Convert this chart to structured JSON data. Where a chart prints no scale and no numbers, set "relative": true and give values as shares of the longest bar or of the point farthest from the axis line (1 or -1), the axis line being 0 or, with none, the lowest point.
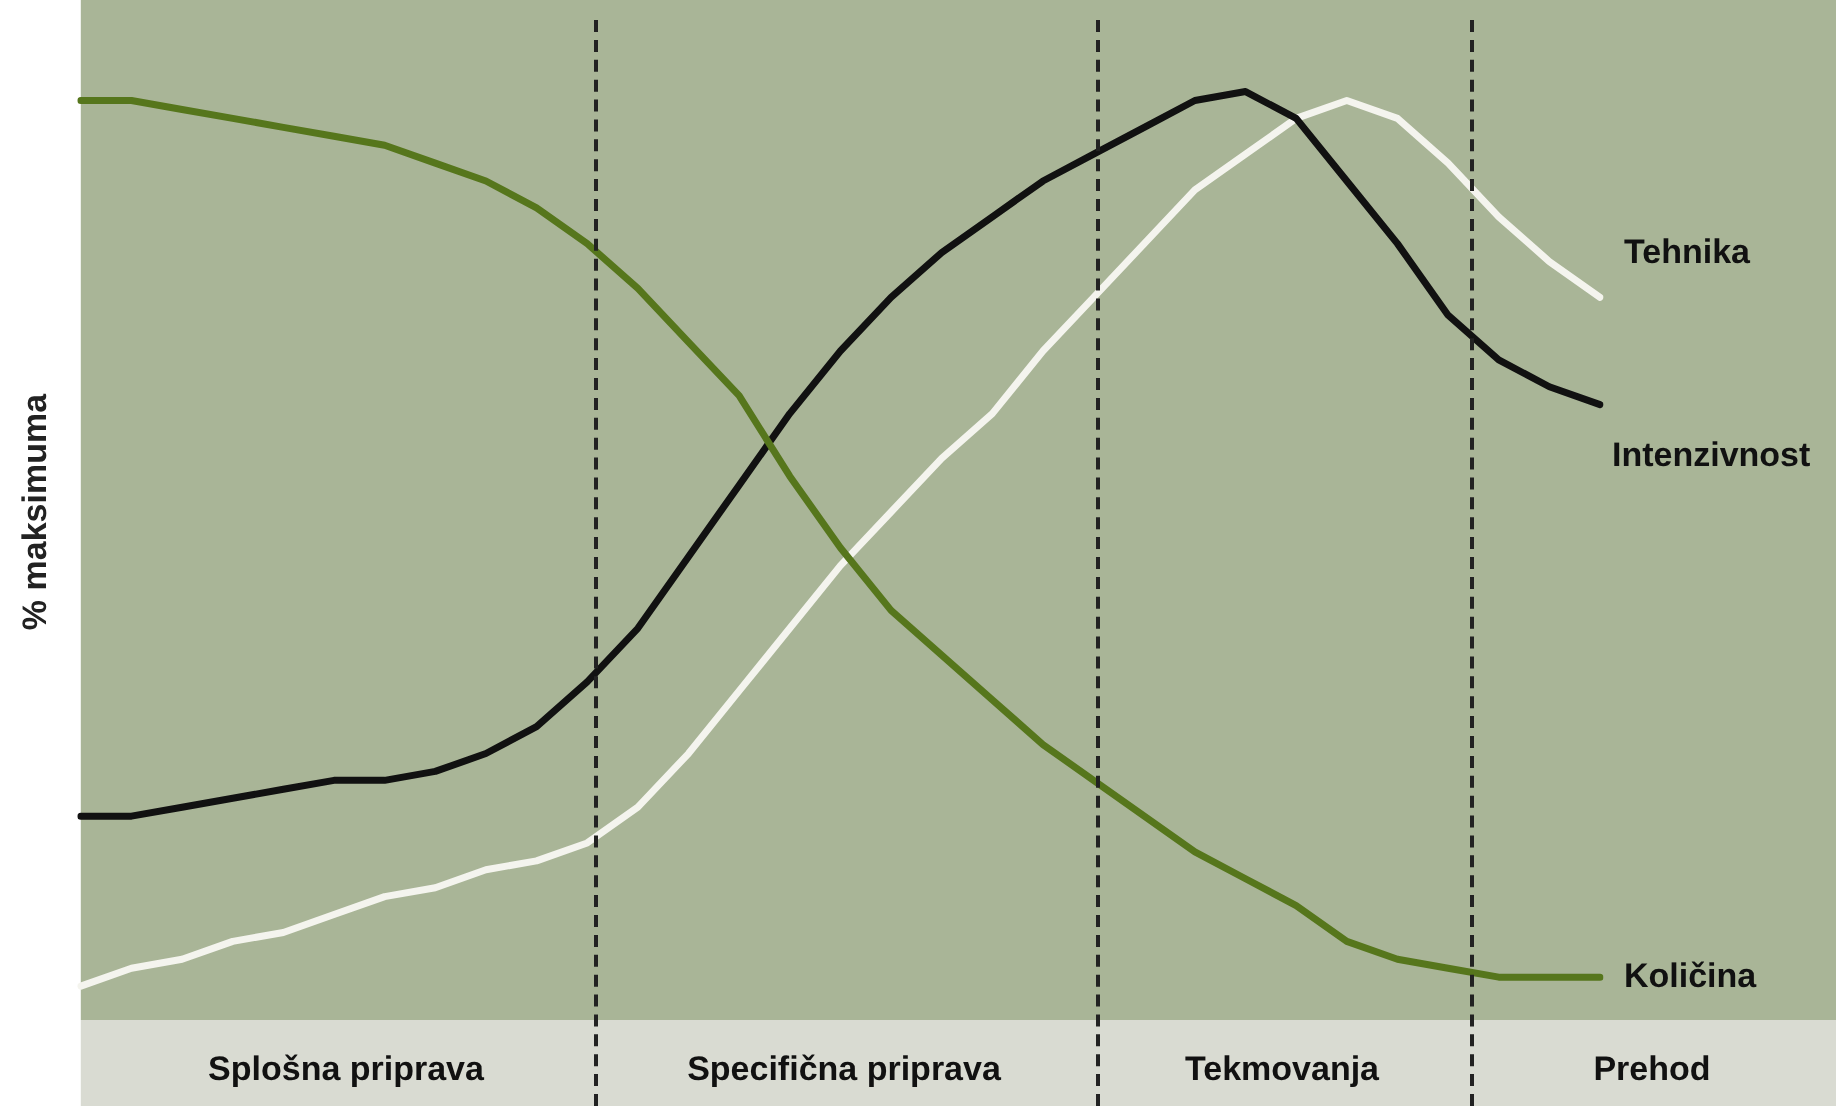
{
  "chart_data": {
    "type": "line",
    "ylabel": "% maksimuma",
    "relative": true,
    "legend": false,
    "marker": "none",
    "line_style": "solid",
    "categories": [
      null,
      null,
      null,
      null,
      null,
      null,
      null,
      null,
      null,
      null,
      null,
      null,
      null,
      null,
      null,
      null,
      null,
      null,
      null,
      null,
      null,
      null,
      null,
      null,
      null,
      null,
      null,
      null,
      null,
      null,
      null
    ],
    "annotations": [
      "Splošna priprava",
      "Specifična priprava",
      "Tekmovanja",
      "Prehod"
    ],
    "series": [
      {
        "name": "Količina",
        "color": "#56761c",
        "values": [
          0.99,
          0.99,
          0.98,
          0.97,
          0.96,
          0.95,
          0.94,
          0.92,
          0.9,
          0.87,
          0.83,
          0.78,
          0.72,
          0.66,
          0.57,
          0.49,
          0.42,
          0.37,
          0.32,
          0.27,
          0.23,
          0.19,
          0.15,
          0.12,
          0.09,
          0.05,
          0.03,
          0.02,
          0.01,
          0.01,
          0.01
        ]
      },
      {
        "name": "Intenzivnost",
        "color": "#111111",
        "values": [
          0.19,
          0.19,
          0.2,
          0.21,
          0.22,
          0.23,
          0.23,
          0.24,
          0.26,
          0.29,
          0.34,
          0.4,
          0.48,
          0.56,
          0.64,
          0.71,
          0.77,
          0.82,
          0.86,
          0.9,
          0.93,
          0.96,
          0.99,
          1.0,
          0.97,
          0.9,
          0.83,
          0.75,
          0.7,
          0.67,
          0.65
        ]
      },
      {
        "name": "Tehnika",
        "color": "#f4f4ee",
        "values": [
          0,
          0.02,
          0.03,
          0.05,
          0.06,
          0.08,
          0.1,
          0.11,
          0.13,
          0.14,
          0.16,
          0.2,
          0.26,
          0.33,
          0.4,
          0.47,
          0.53,
          0.59,
          0.64,
          0.71,
          0.77,
          0.83,
          0.89,
          0.93,
          0.97,
          0.99,
          0.97,
          0.92,
          0.86,
          0.81,
          0.77
        ]
      }
    ]
  }
}
